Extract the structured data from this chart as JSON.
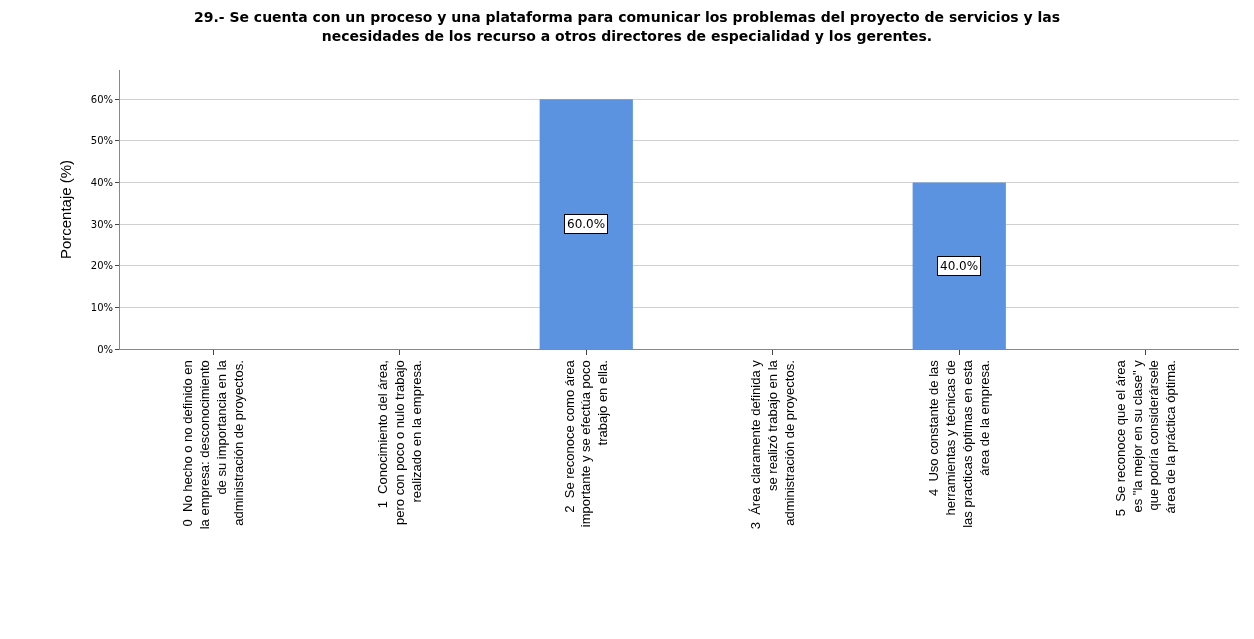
{
  "chart_data": {
    "type": "bar",
    "title": "29.- Se cuenta con un proceso y una plataforma para comunicar los problemas del proyecto de servicios y las\nnecesidades de los recurso a otros directores de especialidad y los gerentes.",
    "ylabel": "Porcentaje (%)",
    "categories": [
      "0  No hecho o no definido en\nla empresa: desconocimiento\nde su importancia en la\nadministración de proyectos.",
      "1  Conocimiento del área,\npero con poco o nulo trabajo\nrealizado en la empresa.",
      "2  Se reconoce como área\nimportante y se efectúa poco\ntrabajo en ella.",
      "3  Área claramente definida y\nse realizó trabajo en la\nadministración de proyectos.",
      "4  Uso constante de las\nherramientas y técnicas de\nlas practicas óptimas en esta\nárea de la empresa.",
      "5  Se reconoce que el área\nes \"la mejor en su clase\" y\nque podría considerársele\nárea de la práctica óptima."
    ],
    "values": [
      0,
      0,
      60,
      0,
      40,
      0
    ],
    "value_labels": [
      null,
      null,
      "60.0%",
      null,
      "40.0%",
      null
    ],
    "color": "#5b93e0",
    "ylim": [
      0,
      67
    ],
    "yticks": [
      {
        "value": 0,
        "label": "0%"
      },
      {
        "value": 10,
        "label": "10%"
      },
      {
        "value": 20,
        "label": "20%"
      },
      {
        "value": 30,
        "label": "30%"
      },
      {
        "value": 40,
        "label": "40%"
      },
      {
        "value": 50,
        "label": "50%"
      },
      {
        "value": 60,
        "label": "60%"
      }
    ],
    "grid": "y"
  }
}
